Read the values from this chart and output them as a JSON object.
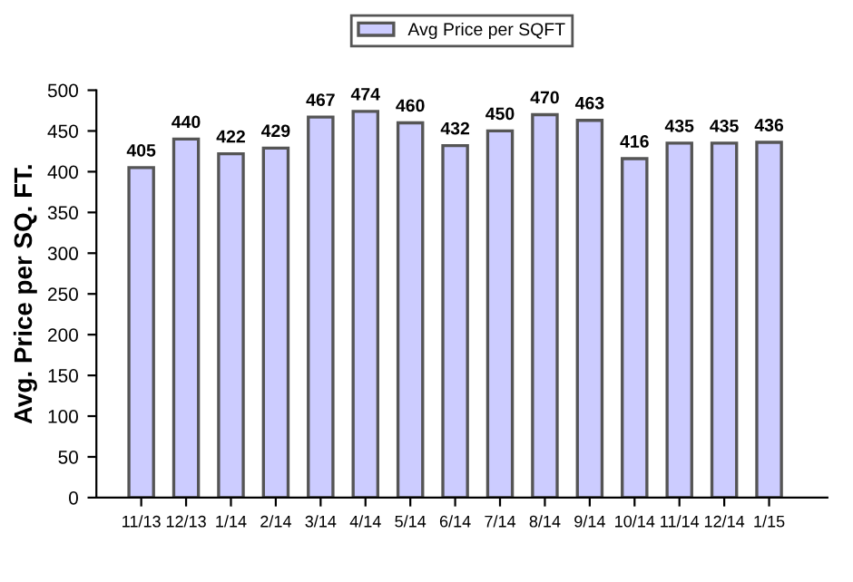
{
  "chart_data": {
    "type": "bar",
    "ylabel": "Avg. Price per SQ. FT.",
    "categories": [
      "11/13",
      "12/13",
      "1/14",
      "2/14",
      "3/14",
      "4/14",
      "5/14",
      "6/14",
      "7/14",
      "8/14",
      "9/14",
      "10/14",
      "11/14",
      "12/14",
      "1/15"
    ],
    "series": [
      {
        "name": "Avg Price per SQFT",
        "color": "#ccccff",
        "values": [
          405,
          440,
          422,
          429,
          467,
          474,
          460,
          432,
          450,
          470,
          463,
          416,
          435,
          435,
          436
        ]
      }
    ],
    "ylim": [
      0,
      500
    ],
    "yticks": [
      0,
      50,
      100,
      150,
      200,
      250,
      300,
      350,
      400,
      450,
      500
    ],
    "data_labels": true,
    "legend": "top",
    "grid": false
  }
}
